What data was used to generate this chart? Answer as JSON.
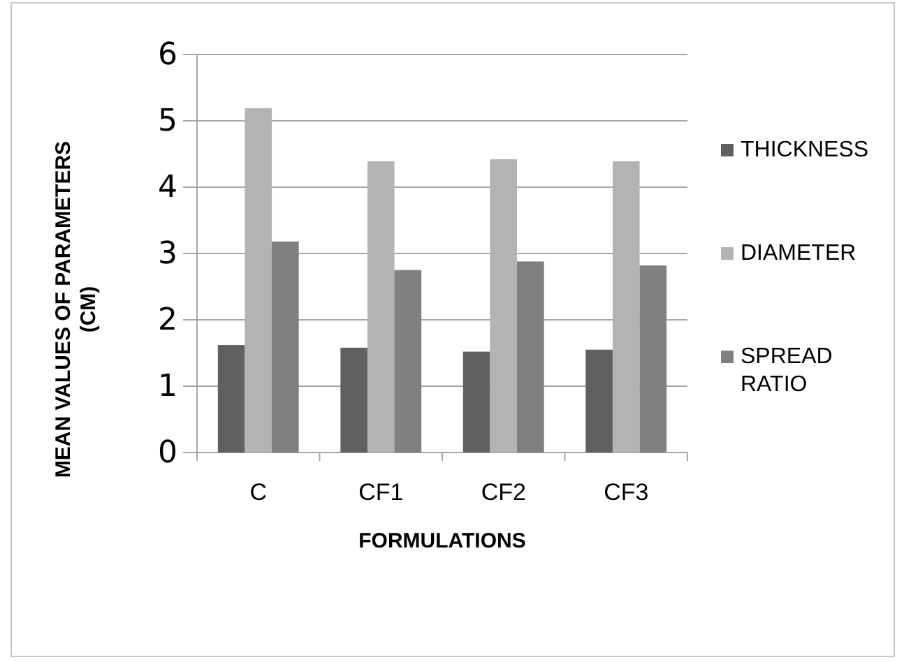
{
  "chart_data": {
    "type": "bar",
    "xlabel": "FORMULATIONS",
    "ylabel": "MEAN VALUES OF PARAMETERS (CM)",
    "categories": [
      "C",
      "CF1",
      "CF2",
      "CF3"
    ],
    "series": [
      {
        "name": "THICKNESS",
        "color": "#606060",
        "values": [
          1.62,
          1.58,
          1.52,
          1.55
        ]
      },
      {
        "name": "DIAMETER",
        "color": "#b3b3b3",
        "values": [
          5.19,
          4.39,
          4.42,
          4.39
        ]
      },
      {
        "name": "SPREAD RATIO",
        "color": "#808080",
        "values": [
          3.18,
          2.75,
          2.88,
          2.82
        ]
      }
    ],
    "ylim": [
      0,
      6
    ],
    "yticks": [
      0,
      1,
      2,
      3,
      4,
      5,
      6
    ],
    "grid": "y",
    "legend": "right"
  }
}
